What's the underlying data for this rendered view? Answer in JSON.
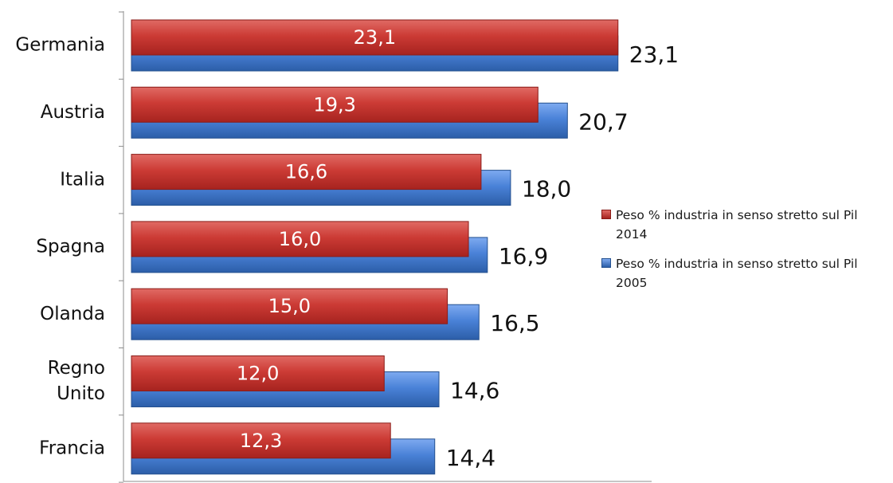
{
  "chart_data": {
    "type": "bar",
    "orientation": "horizontal",
    "categories": [
      "Germania",
      "Austria",
      "Italia",
      "Spagna",
      "Olanda",
      "Regno Unito",
      "Francia"
    ],
    "category_lines": [
      [
        "Germania"
      ],
      [
        "Austria"
      ],
      [
        "Italia"
      ],
      [
        "Spagna"
      ],
      [
        "Olanda"
      ],
      [
        "Regno",
        "Unito"
      ],
      [
        "Francia"
      ]
    ],
    "series": [
      {
        "name": "Peso % industria in senso stretto sul Pil 2014",
        "color": "#c0392b",
        "values": [
          23.1,
          19.3,
          16.6,
          16.0,
          15.0,
          12.0,
          12.3
        ],
        "labels": [
          "23,1",
          "19,3",
          "16,6",
          "16,0",
          "15,0",
          "12,0",
          "12,3"
        ]
      },
      {
        "name": "Peso % industria in senso stretto sul Pil 2005",
        "color": "#3a74c8",
        "values": [
          23.1,
          20.7,
          18.0,
          16.9,
          16.5,
          14.6,
          14.4
        ],
        "labels": [
          "23,1",
          "20,7",
          "18,0",
          "16,9",
          "16,5",
          "14,6",
          "14,4"
        ]
      }
    ],
    "legend_position": "right",
    "grid": false
  },
  "legend": {
    "items": [
      {
        "label": "Peso % industria in senso stretto sul Pil 2014",
        "color": "#c0392b"
      },
      {
        "label": "Peso % industria in senso stretto sul Pil 2005",
        "color": "#3a74c8"
      }
    ]
  }
}
